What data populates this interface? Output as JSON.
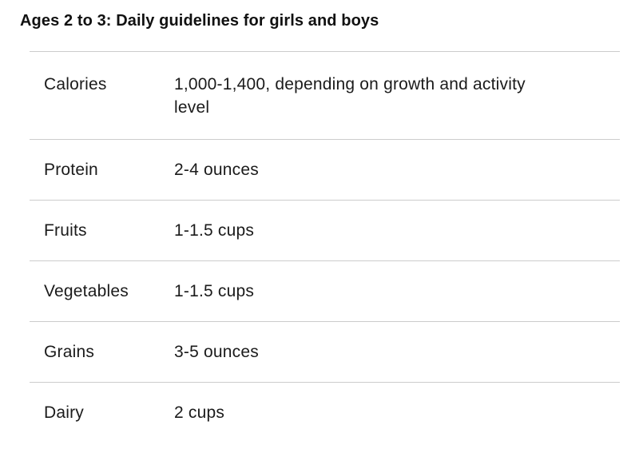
{
  "header": {
    "title": "Ages 2 to 3: Daily guidelines for girls and boys"
  },
  "table": {
    "rows": [
      {
        "label": "Calories",
        "value": "1,000-1,400, depending on growth and activity level"
      },
      {
        "label": "Protein",
        "value": "2-4 ounces"
      },
      {
        "label": "Fruits",
        "value": "1-1.5 cups"
      },
      {
        "label": "Vegetables",
        "value": "1-1.5 cups"
      },
      {
        "label": "Grains",
        "value": "3-5 ounces"
      },
      {
        "label": "Dairy",
        "value": "2 cups"
      }
    ]
  },
  "colors": {
    "background": "#ffffff",
    "title_text": "#111111",
    "body_text": "#1b1b1b",
    "divider": "#cccccc"
  }
}
